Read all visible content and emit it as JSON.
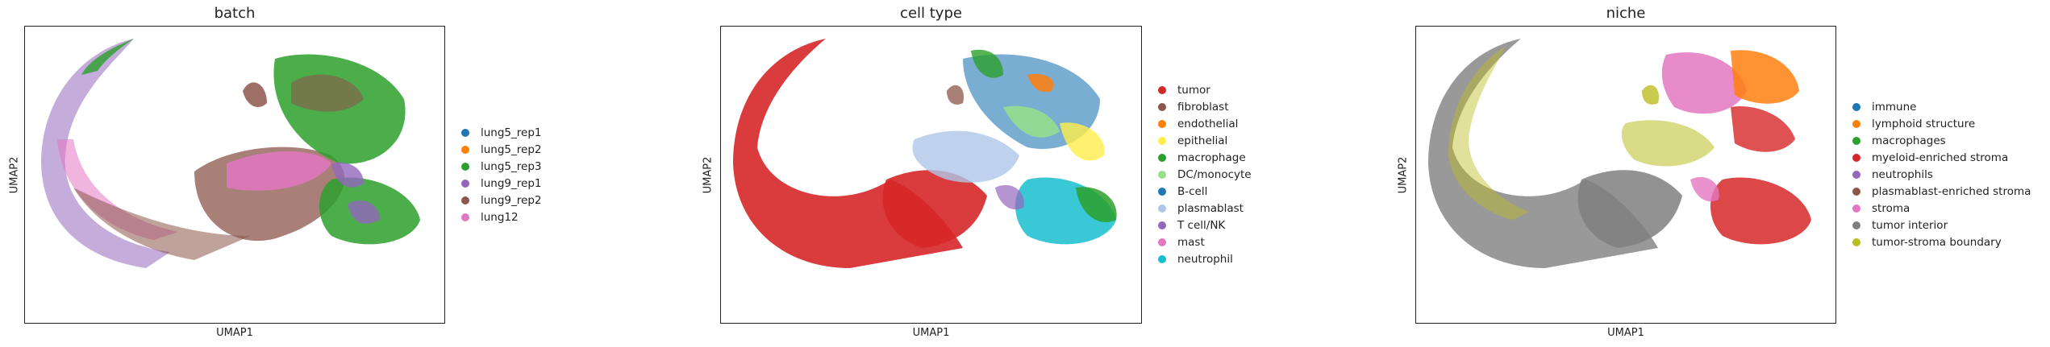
{
  "chart_data": [
    {
      "type": "scatter",
      "title": "batch",
      "xlabel": "UMAP1",
      "ylabel": "UMAP2",
      "grid": false,
      "legend_placement": "right",
      "series": [
        {
          "name": "lung5_rep1",
          "color": "#1f77b4"
        },
        {
          "name": "lung5_rep2",
          "color": "#ff7f0e"
        },
        {
          "name": "lung5_rep3",
          "color": "#2ca02c"
        },
        {
          "name": "lung9_rep1",
          "color": "#9467bd"
        },
        {
          "name": "lung9_rep2",
          "color": "#8c564b"
        },
        {
          "name": "lung12",
          "color": "#e377c2"
        }
      ]
    },
    {
      "type": "scatter",
      "title": "cell type",
      "xlabel": "UMAP1",
      "ylabel": "UMAP2",
      "grid": false,
      "legend_placement": "right",
      "series": [
        {
          "name": "tumor",
          "color": "#d62728"
        },
        {
          "name": "fibroblast",
          "color": "#8c564b"
        },
        {
          "name": "endothelial",
          "color": "#ff7f0e"
        },
        {
          "name": "epithelial",
          "color": "#ffed4a"
        },
        {
          "name": "macrophage",
          "color": "#2ca02c"
        },
        {
          "name": "DC/monocyte",
          "color": "#98df8a"
        },
        {
          "name": "B-cell",
          "color": "#1f77b4"
        },
        {
          "name": "plasmablast",
          "color": "#aec7e8"
        },
        {
          "name": "T cell/NK",
          "color": "#9467bd"
        },
        {
          "name": "mast",
          "color": "#e377c2"
        },
        {
          "name": "neutrophil",
          "color": "#17becf"
        }
      ]
    },
    {
      "type": "scatter",
      "title": "niche",
      "xlabel": "UMAP1",
      "ylabel": "UMAP2",
      "grid": false,
      "legend_placement": "right",
      "series": [
        {
          "name": "immune",
          "color": "#1f77b4"
        },
        {
          "name": "lymphoid structure",
          "color": "#ff7f0e"
        },
        {
          "name": "macrophages",
          "color": "#2ca02c"
        },
        {
          "name": "myeloid-enriched stroma",
          "color": "#d62728"
        },
        {
          "name": "neutrophils",
          "color": "#9467bd"
        },
        {
          "name": "plasmablast-enriched stroma",
          "color": "#8c564b"
        },
        {
          "name": "stroma",
          "color": "#e377c2"
        },
        {
          "name": "tumor interior",
          "color": "#7f7f7f"
        },
        {
          "name": "tumor-stroma boundary",
          "color": "#bcbd22"
        }
      ]
    }
  ]
}
